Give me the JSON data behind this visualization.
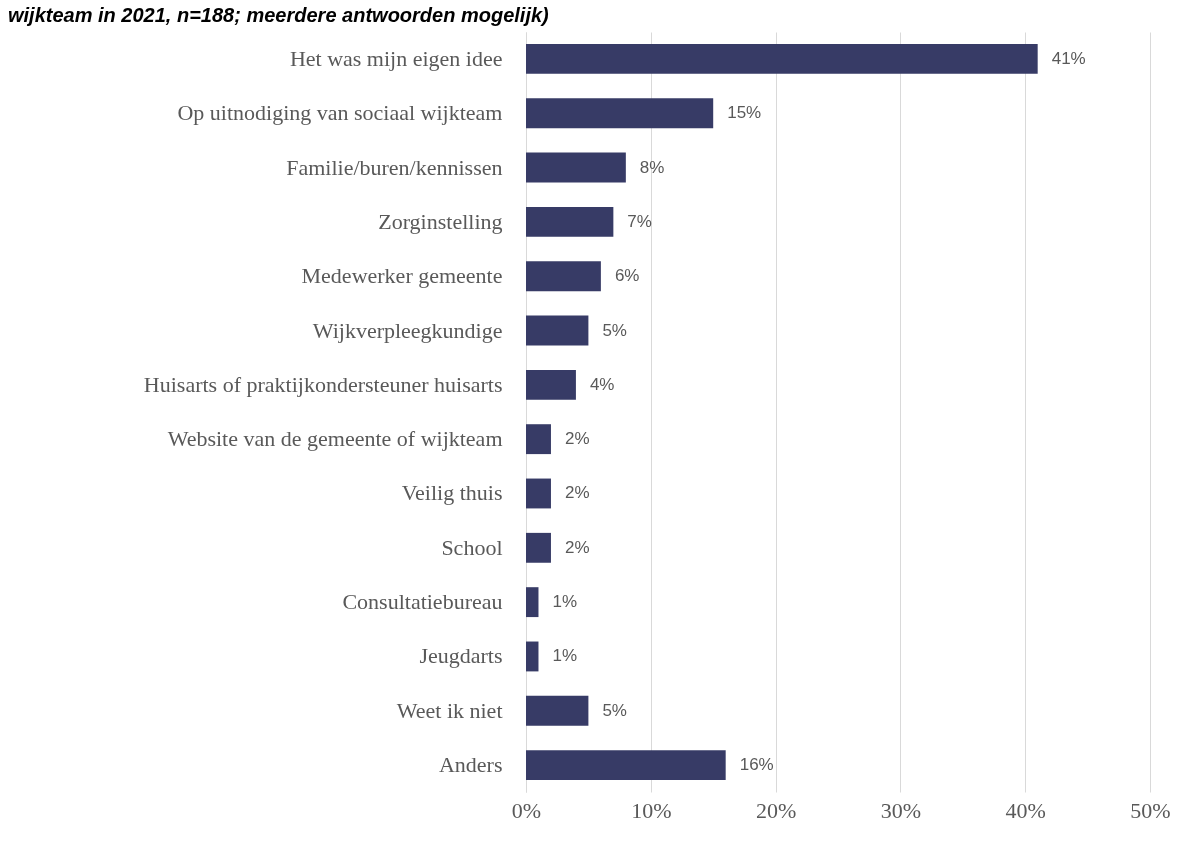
{
  "chart_data": {
    "type": "bar",
    "orientation": "horizontal",
    "title": "wijkteam in 2021, n=188; meerdere antwoorden mogelijk)",
    "categories": [
      "Het was mijn eigen idee",
      "Op uitnodiging van sociaal wijkteam",
      "Familie/buren/kennissen",
      "Zorginstelling",
      "Medewerker gemeente",
      "Wijkverpleegkundige",
      "Huisarts of praktijkondersteuner huisarts",
      "Website van de gemeente of wijkteam",
      "Veilig thuis",
      "School",
      "Consultatiebureau",
      "Jeugdarts",
      "Weet ik niet",
      "Anders"
    ],
    "values": [
      41,
      15,
      8,
      7,
      6,
      5,
      4,
      2,
      2,
      2,
      1,
      1,
      5,
      16
    ],
    "value_labels": [
      "41%",
      "15%",
      "8%",
      "7%",
      "6%",
      "5%",
      "4%",
      "2%",
      "2%",
      "2%",
      "1%",
      "1%",
      "5%",
      "16%"
    ],
    "color": "#373b66",
    "xlim": [
      0,
      50
    ],
    "xticks": [
      {
        "value": 0,
        "label": "0%"
      },
      {
        "value": 10,
        "label": "10%"
      },
      {
        "value": 20,
        "label": "20%"
      },
      {
        "value": 30,
        "label": "30%"
      },
      {
        "value": 40,
        "label": "40%"
      },
      {
        "value": 50,
        "label": "50%"
      }
    ],
    "grid": "x"
  }
}
